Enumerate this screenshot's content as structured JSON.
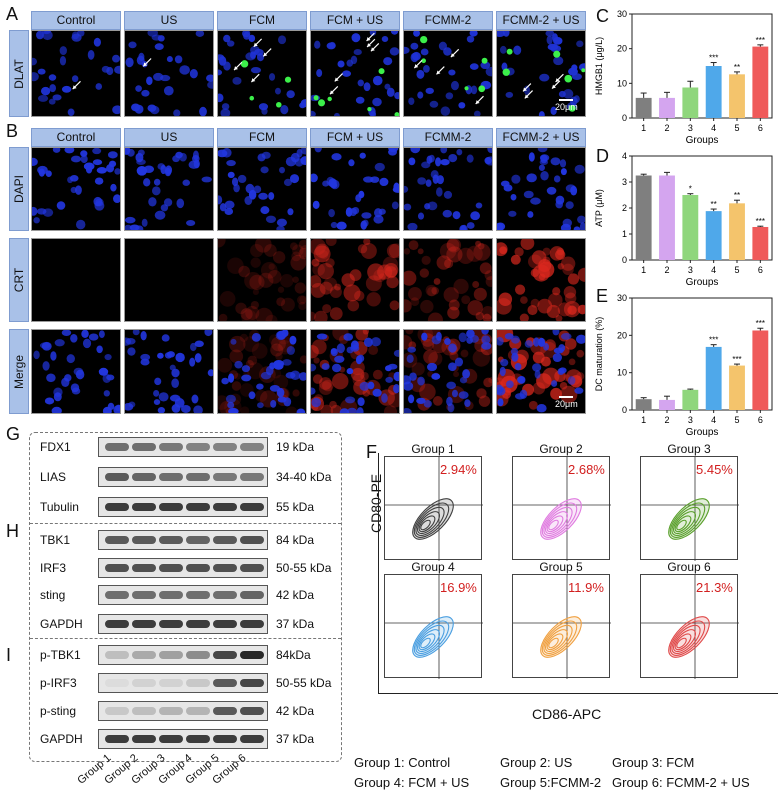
{
  "panels": {
    "A": "A",
    "B": "B",
    "C": "C",
    "D": "D",
    "E": "E",
    "F": "F",
    "G": "G",
    "H": "H",
    "I": "I"
  },
  "groups_header": [
    "Control",
    "US",
    "FCM",
    "FCM + US",
    "FCMM-2",
    "FCMM-2 + US"
  ],
  "row_labels": {
    "dlat": "DLAT",
    "dapi": "DAPI",
    "crt": "CRT",
    "merge": "Merge"
  },
  "scale_bar": "20μm",
  "charts": {
    "hmgb1": {
      "type": "bar",
      "ylabel": "HMGB1 (μg/L)",
      "xlabel": "Groups",
      "categories": [
        "1",
        "2",
        "3",
        "4",
        "5",
        "6"
      ],
      "values": [
        5.8,
        5.8,
        8.8,
        15.0,
        12.6,
        20.6
      ],
      "errors": [
        1.4,
        1.6,
        1.8,
        1.0,
        0.7,
        0.5
      ],
      "sig": [
        "",
        "",
        "",
        "***",
        "**",
        "***"
      ],
      "ylim": [
        0,
        30
      ],
      "yticks": [
        "0",
        "10",
        "20",
        "30"
      ]
    },
    "atp": {
      "type": "bar",
      "ylabel": "ATP (μM)",
      "xlabel": "Groups",
      "categories": [
        "1",
        "2",
        "3",
        "4",
        "5",
        "6"
      ],
      "values": [
        3.25,
        3.25,
        2.5,
        1.88,
        2.18,
        1.27
      ],
      "errors": [
        0.05,
        0.12,
        0.05,
        0.08,
        0.12,
        0.03
      ],
      "sig": [
        "",
        "",
        "*",
        "**",
        "**",
        "***"
      ],
      "ylim": [
        0,
        4
      ],
      "yticks": [
        "0",
        "1",
        "2",
        "3",
        "4"
      ]
    },
    "dc": {
      "type": "bar",
      "ylabel": "DC maturation (%)",
      "xlabel": "Groups",
      "categories": [
        "1",
        "2",
        "3",
        "4",
        "5",
        "6"
      ],
      "values": [
        2.9,
        2.7,
        5.4,
        16.9,
        11.9,
        21.3
      ],
      "errors": [
        0.4,
        1.0,
        0.2,
        0.6,
        0.4,
        0.6
      ],
      "sig": [
        "",
        "",
        "",
        "***",
        "***",
        "***"
      ],
      "ylim": [
        0,
        30
      ],
      "yticks": [
        "0",
        "10",
        "20",
        "30"
      ]
    }
  },
  "chart_colors": [
    "#7f7f7f",
    "#d4a5ef",
    "#8fd67c",
    "#4fa8ea",
    "#f4c46c",
    "#ef5a5a"
  ],
  "western_blot": {
    "G": [
      {
        "name": "FDX1",
        "kda": "19 kDa"
      },
      {
        "name": "LIAS",
        "kda": "34-40 kDa"
      },
      {
        "name": "Tubulin",
        "kda": "55 kDa"
      }
    ],
    "H": [
      {
        "name": "TBK1",
        "kda": "84 kDa"
      },
      {
        "name": "IRF3",
        "kda": "50-55 kDa"
      },
      {
        "name": "sting",
        "kda": "42 kDa"
      },
      {
        "name": "GAPDH",
        "kda": "37 kDa"
      }
    ],
    "I": [
      {
        "name": "p-TBK1",
        "kda": "84kDa"
      },
      {
        "name": "p-IRF3",
        "kda": "50-55 kDa"
      },
      {
        "name": "p-sting",
        "kda": "42 kDa"
      },
      {
        "name": "GAPDH",
        "kda": "37 kDa"
      }
    ],
    "lanes": [
      "Group 1",
      "Group 2",
      "Group 3",
      "Group 4",
      "Group 5",
      "Group 6"
    ]
  },
  "flow": {
    "ylabel": "CD80-PE",
    "xlabel": "CD86-APC",
    "plots": [
      {
        "title": "Group 1",
        "pct": "2.94%",
        "color": "#404040"
      },
      {
        "title": "Group 2",
        "pct": "2.68%",
        "color": "#e07ce0"
      },
      {
        "title": "Group 3",
        "pct": "5.45%",
        "color": "#5aa02c"
      },
      {
        "title": "Group 4",
        "pct": "16.9%",
        "color": "#4a9ee0"
      },
      {
        "title": "Group 5",
        "pct": "11.9%",
        "color": "#f0a040"
      },
      {
        "title": "Group 6",
        "pct": "21.3%",
        "color": "#e04a4a"
      }
    ]
  },
  "legend": [
    [
      "Group 1: Control",
      "Group 2: US",
      "Group 3: FCM"
    ],
    [
      "Group 4: FCM + US",
      "Group 5:FCMM-2",
      "Group 6: FCMM-2 + US"
    ]
  ]
}
